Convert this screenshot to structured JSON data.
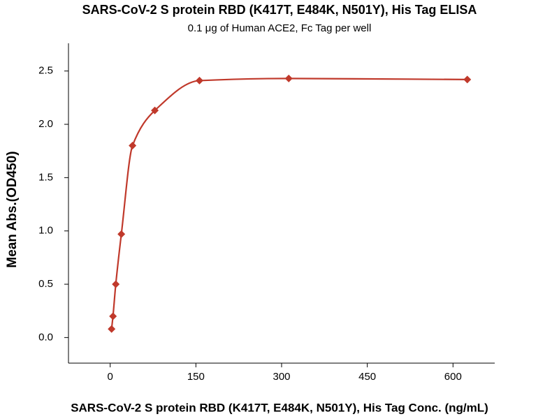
{
  "chart_data": {
    "type": "scatter",
    "title": "SARS-CoV-2 S protein RBD (K417T, E484K, N501Y), His Tag ELISA",
    "subtitle": "0.1 μg of Human ACE2, Fc Tag per well",
    "x_label": "SARS-CoV-2 S protein RBD (K417T, E484K, N501Y), His Tag Conc. (ng/mL)",
    "y_label": "Mean Abs.(OD450)",
    "x": [
      2.44,
      4.88,
      9.77,
      19.53,
      39.06,
      78.13,
      156.25,
      312.5,
      625
    ],
    "values": [
      0.08,
      0.2,
      0.5,
      0.97,
      1.8,
      2.13,
      2.41,
      2.43,
      2.42
    ],
    "color": "#c0392b",
    "xlim": [
      -73,
      673
    ],
    "xticks": [
      0,
      150,
      300,
      450,
      600
    ],
    "ylim": [
      -0.24,
      2.76
    ],
    "yticks": [
      {
        "value": 0,
        "label": "0.0"
      },
      0.5,
      {
        "value": 1,
        "label": "1.0"
      },
      1.5,
      {
        "value": 2,
        "label": "2.0"
      },
      2.5
    ]
  }
}
